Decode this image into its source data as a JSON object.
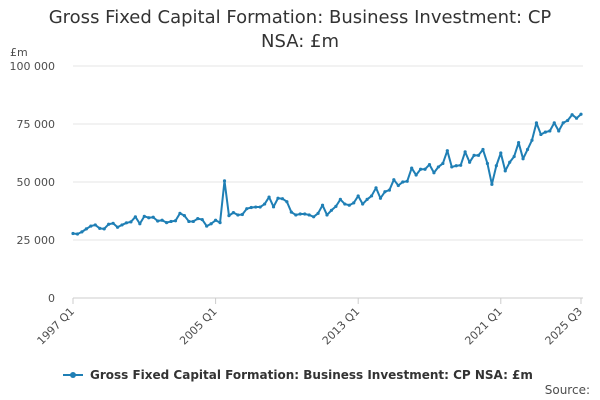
{
  "chart_data": {
    "type": "line",
    "title": "Gross Fixed Capital Formation: Business Investment: CP NSA: £m",
    "title_lines": [
      "Gross Fixed Capital Formation: Business Investment: CP",
      "NSA: £m"
    ],
    "ylabel": "£m",
    "xlabel": "",
    "ylim": [
      0,
      100000
    ],
    "yticks": [
      0,
      25000,
      50000,
      75000,
      100000
    ],
    "ytick_labels": [
      "0",
      "25 000",
      "50 000",
      "75 000",
      "100 000"
    ],
    "xtick_labels": [
      "1997 Q1",
      "2005 Q1",
      "2013 Q1",
      "2021 Q1",
      "2025 Q3"
    ],
    "xtick_index": [
      0,
      32,
      64,
      96,
      114
    ],
    "grid": true,
    "legend_position": "bottom",
    "series": [
      {
        "name": "Gross Fixed Capital Formation: Business Investment: CP NSA: £m",
        "color": "#1f7fb5",
        "values": [
          27800,
          27600,
          28500,
          29800,
          31000,
          31500,
          30000,
          29800,
          31800,
          32200,
          30500,
          31500,
          32400,
          32800,
          35000,
          32000,
          35200,
          34600,
          34800,
          33200,
          33500,
          32500,
          33000,
          33300,
          36500,
          35500,
          33000,
          33000,
          34200,
          33800,
          31000,
          32000,
          33500,
          32500,
          50500,
          35500,
          36800,
          35800,
          36000,
          38500,
          39000,
          39200,
          39200,
          40500,
          43500,
          39300,
          43000,
          42800,
          41500,
          37000,
          35800,
          36200,
          36200,
          35800,
          35000,
          36500,
          40000,
          35800,
          37800,
          39500,
          42500,
          40500,
          40000,
          41000,
          44000,
          40500,
          42500,
          44000,
          47500,
          43000,
          45800,
          46500,
          51000,
          48500,
          50000,
          50300,
          56000,
          53000,
          55500,
          55500,
          57500,
          54000,
          56500,
          58000,
          63500,
          56500,
          57000,
          57200,
          63000,
          58500,
          61500,
          61500,
          64000,
          58000,
          49000,
          57000,
          62500,
          54800,
          58500,
          61000,
          67000,
          60000,
          64000,
          68000,
          75500,
          70500,
          71500,
          72000,
          75500,
          72000,
          75500,
          76500,
          79000,
          77500,
          79200
        ]
      }
    ]
  },
  "source_label": "Source:"
}
